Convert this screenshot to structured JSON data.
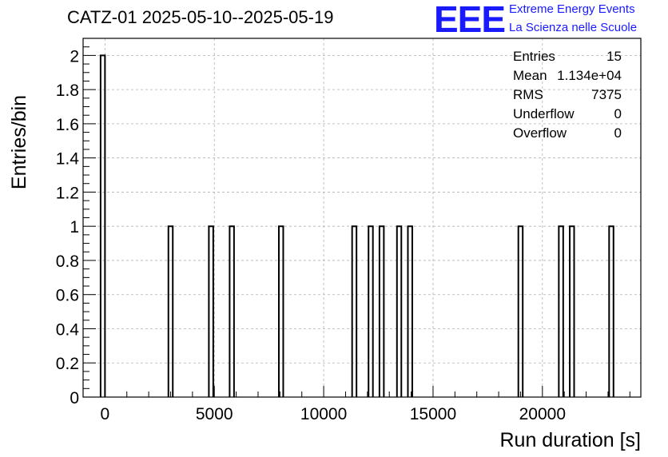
{
  "header": {
    "title": "CATZ-01 2025-05-10--2025-05-19",
    "logo_mark": "EEE",
    "logo_line1": "Extreme Energy Events",
    "logo_line2": "La Scienza nelle Scuole",
    "logo_color": "#1a1aff"
  },
  "stats_box": {
    "rows": [
      {
        "label": "Entries",
        "value": "15"
      },
      {
        "label": "Mean",
        "value": "1.134e+04"
      },
      {
        "label": "RMS",
        "value": "7375"
      },
      {
        "label": "Underflow",
        "value": "0"
      },
      {
        "label": "Overflow",
        "value": "0"
      }
    ]
  },
  "chart_data": {
    "type": "bar",
    "subtype": "histogram",
    "xlabel": "Run duration [s]",
    "ylabel": "Entries/bin",
    "xlim": [
      -1000,
      24500
    ],
    "ylim": [
      0,
      2.1
    ],
    "x_ticks": [
      0,
      5000,
      10000,
      15000,
      20000
    ],
    "x_tick_labels": [
      "0",
      "5000",
      "10000",
      "15000",
      "20000"
    ],
    "y_ticks": [
      0,
      0.2,
      0.4,
      0.6,
      0.8,
      1,
      1.2,
      1.4,
      1.6,
      1.8,
      2
    ],
    "y_tick_labels": [
      "0",
      "0.2",
      "0.4",
      "0.6",
      "0.8",
      "1",
      "1.2",
      "1.4",
      "1.6",
      "1.8",
      "2"
    ],
    "grid": true,
    "line_color": "#000000",
    "bin_width": 200,
    "bins": [
      {
        "x": -100,
        "count": 2
      },
      {
        "x": 3000,
        "count": 1
      },
      {
        "x": 4850,
        "count": 1
      },
      {
        "x": 5800,
        "count": 1
      },
      {
        "x": 8050,
        "count": 1
      },
      {
        "x": 11400,
        "count": 1
      },
      {
        "x": 12150,
        "count": 1
      },
      {
        "x": 12650,
        "count": 1
      },
      {
        "x": 13450,
        "count": 1
      },
      {
        "x": 13950,
        "count": 1
      },
      {
        "x": 19000,
        "count": 1
      },
      {
        "x": 20850,
        "count": 1
      },
      {
        "x": 21350,
        "count": 1
      },
      {
        "x": 23150,
        "count": 1
      }
    ]
  }
}
